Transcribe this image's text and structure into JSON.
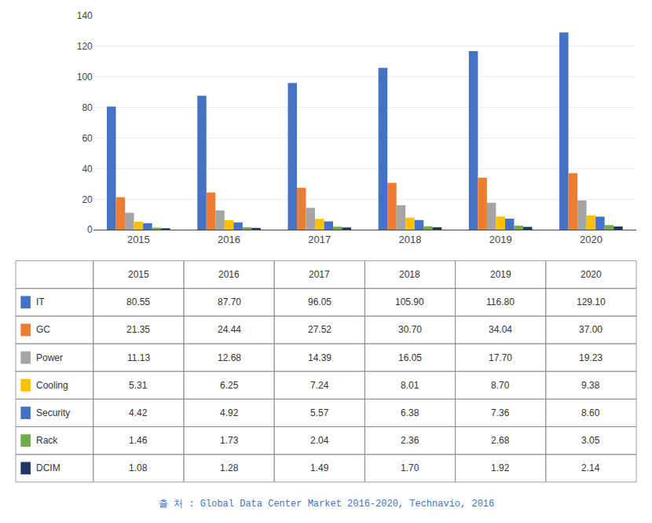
{
  "chart_data": {
    "type": "bar",
    "categories": [
      "2015",
      "2016",
      "2017",
      "2018",
      "2019",
      "2020"
    ],
    "series": [
      {
        "name": "IT",
        "color": "#4472C4",
        "values": [
          80.55,
          87.7,
          96.05,
          105.9,
          116.8,
          129.1
        ],
        "value_labels": [
          "80.55",
          "87.70",
          "96.05",
          "105.90",
          "116.80",
          "129.10"
        ]
      },
      {
        "name": "GC",
        "color": "#ED7D31",
        "values": [
          21.35,
          24.44,
          27.52,
          30.7,
          34.04,
          37.0
        ],
        "value_labels": [
          "21.35",
          "24.44",
          "27.52",
          "30.70",
          "34.04",
          "37.00"
        ]
      },
      {
        "name": "Power",
        "color": "#A5A5A5",
        "values": [
          11.13,
          12.68,
          14.39,
          16.05,
          17.7,
          19.23
        ],
        "value_labels": [
          "11.13",
          "12.68",
          "14.39",
          "16.05",
          "17.70",
          "19.23"
        ]
      },
      {
        "name": "Cooling",
        "color": "#FFC000",
        "values": [
          5.31,
          6.25,
          7.24,
          8.01,
          8.7,
          9.38
        ],
        "value_labels": [
          "5.31",
          "6.25",
          "7.24",
          "8.01",
          "8.70",
          "9.38"
        ]
      },
      {
        "name": "Security",
        "color": "#4472C4",
        "values": [
          4.42,
          4.92,
          5.57,
          6.38,
          7.36,
          8.6
        ],
        "value_labels": [
          "4.42",
          "4.92",
          "5.57",
          "6.38",
          "7.36",
          "8.60"
        ]
      },
      {
        "name": "Rack",
        "color": "#70AD47",
        "values": [
          1.46,
          1.73,
          2.04,
          2.36,
          2.68,
          3.05
        ],
        "value_labels": [
          "1.46",
          "1.73",
          "2.04",
          "2.36",
          "2.68",
          "3.05"
        ]
      },
      {
        "name": "DCIM",
        "color": "#1F3864",
        "values": [
          1.08,
          1.28,
          1.49,
          1.7,
          1.92,
          2.14
        ],
        "value_labels": [
          "1.08",
          "1.28",
          "1.49",
          "1.70",
          "1.92",
          "2.14"
        ]
      }
    ],
    "ylim": [
      0,
      140
    ],
    "yticks": [
      0,
      20,
      40,
      60,
      80,
      100,
      120,
      140
    ],
    "grid": true,
    "annotations": [
      "출 처 : Global Data Center Market 2016-2020, Technavio, 2016"
    ]
  }
}
